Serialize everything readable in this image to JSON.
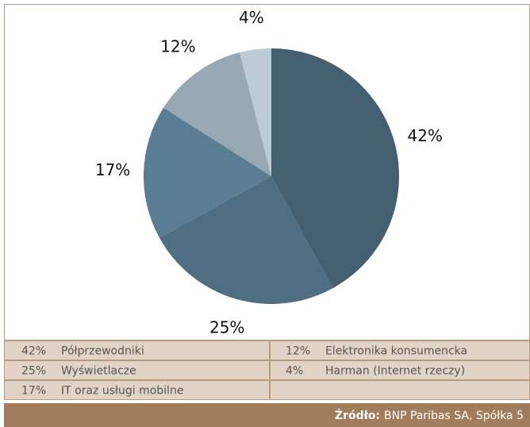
{
  "chart_data": {
    "type": "pie",
    "categories": [
      "Półprzewodniki",
      "Wyświetlacze",
      "IT oraz usługi mobilne",
      "Elektronika konsumencka",
      "Harman (Internet rzeczy)"
    ],
    "values": [
      42,
      25,
      17,
      12,
      4
    ],
    "value_labels": [
      "42%",
      "25%",
      "17%",
      "12%",
      "4%"
    ],
    "colors": [
      "#445f70",
      "#4f6e82",
      "#5a7d93",
      "#95a8b4",
      "#bccbd4"
    ],
    "source_label": "Źródło:",
    "source": "BNP Paribas SA, Spółka 5"
  }
}
